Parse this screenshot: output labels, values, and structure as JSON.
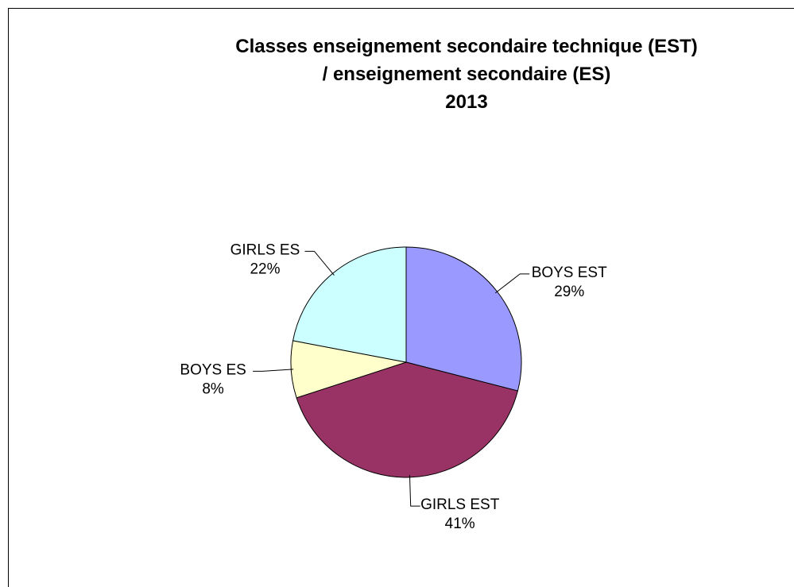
{
  "chart_data": {
    "type": "pie",
    "title": [
      "Classes enseignement secondaire technique (EST)",
      "/ enseignement secondaire (ES)",
      "2013"
    ],
    "categories": [
      "BOYS EST",
      "GIRLS EST",
      "BOYS ES",
      "GIRLS ES"
    ],
    "values": [
      29,
      41,
      8,
      22
    ],
    "value_labels": [
      "29%",
      "41%",
      "8%",
      "22%"
    ],
    "colors": [
      "#9999ff",
      "#993366",
      "#ffffcc",
      "#ccffff"
    ]
  }
}
